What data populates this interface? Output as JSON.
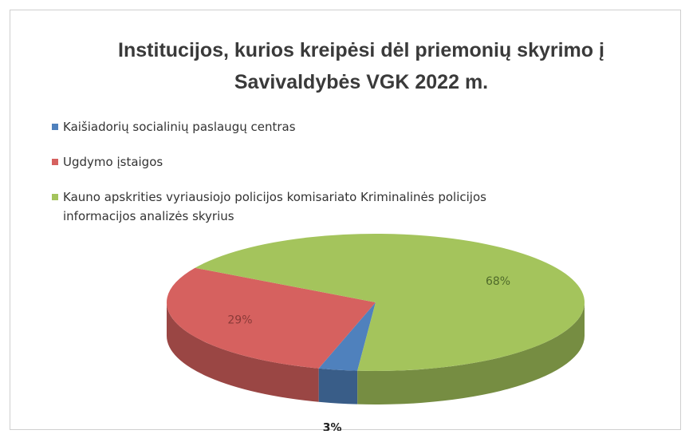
{
  "chart_data": {
    "type": "pie",
    "title": "Institucijos, kurios kreipėsi dėl priemonių skyrimo į Savivaldybės VGK 2022 m.",
    "categories": [
      "Kaišiadorių socialinių paslaugų centras",
      "Ugdymo įstaigos",
      "Kauno apskrities vyriausiojo policijos komisariato Kriminalinės policijos informacijos analizės skyrius"
    ],
    "values": [
      3,
      29,
      68
    ],
    "value_labels": [
      "3%",
      "29%",
      "68%"
    ],
    "colors": [
      "#4f81bd",
      "#d6615f",
      "#a4c45c"
    ],
    "legend": "top-left"
  }
}
